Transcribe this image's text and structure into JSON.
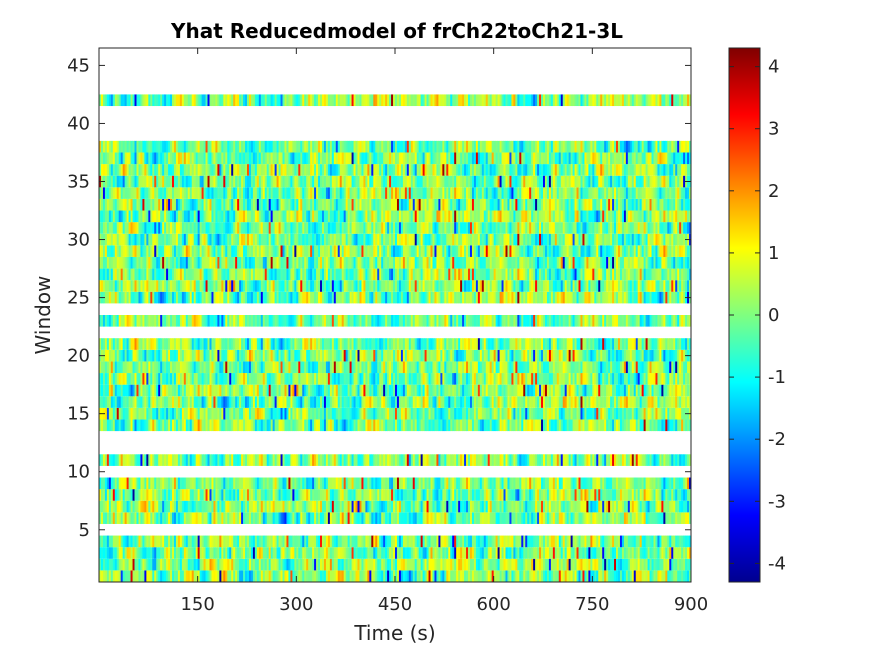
{
  "chart_data": {
    "type": "heatmap",
    "title": "Yhat Reducedmodel of frCh22toCh21-3L",
    "xlabel": "Time (s)",
    "ylabel": "Window",
    "xlim": [
      0,
      900
    ],
    "ylim": [
      0.5,
      46.5
    ],
    "x_ticks": [
      "150",
      "300",
      "450",
      "600",
      "750",
      "900"
    ],
    "y_ticks": [
      "5",
      "10",
      "15",
      "20",
      "25",
      "30",
      "35",
      "40",
      "45"
    ],
    "x_tick_values": [
      150,
      300,
      450,
      600,
      750,
      900
    ],
    "y_tick_values": [
      5,
      10,
      15,
      20,
      25,
      30,
      35,
      40,
      45
    ],
    "colormap": "jet",
    "clim": [
      -4.3,
      4.3
    ],
    "colorbar_ticks": [
      "4",
      "3",
      "2",
      "1",
      "0",
      "-1",
      "-2",
      "-3",
      "-4"
    ],
    "colorbar_tick_values": [
      4,
      3,
      2,
      1,
      0,
      -1,
      -2,
      -3,
      -4
    ],
    "present_windows": [
      1,
      2,
      3,
      4,
      6,
      7,
      8,
      9,
      11,
      14,
      15,
      16,
      17,
      18,
      19,
      20,
      21,
      23,
      25,
      26,
      27,
      28,
      29,
      30,
      31,
      32,
      33,
      34,
      35,
      36,
      37,
      38,
      42
    ],
    "missing_windows": [
      5,
      10,
      12,
      13,
      22,
      24,
      39,
      40,
      41,
      43,
      44,
      45,
      46
    ],
    "grid": false,
    "legend": "colorbar-right"
  }
}
